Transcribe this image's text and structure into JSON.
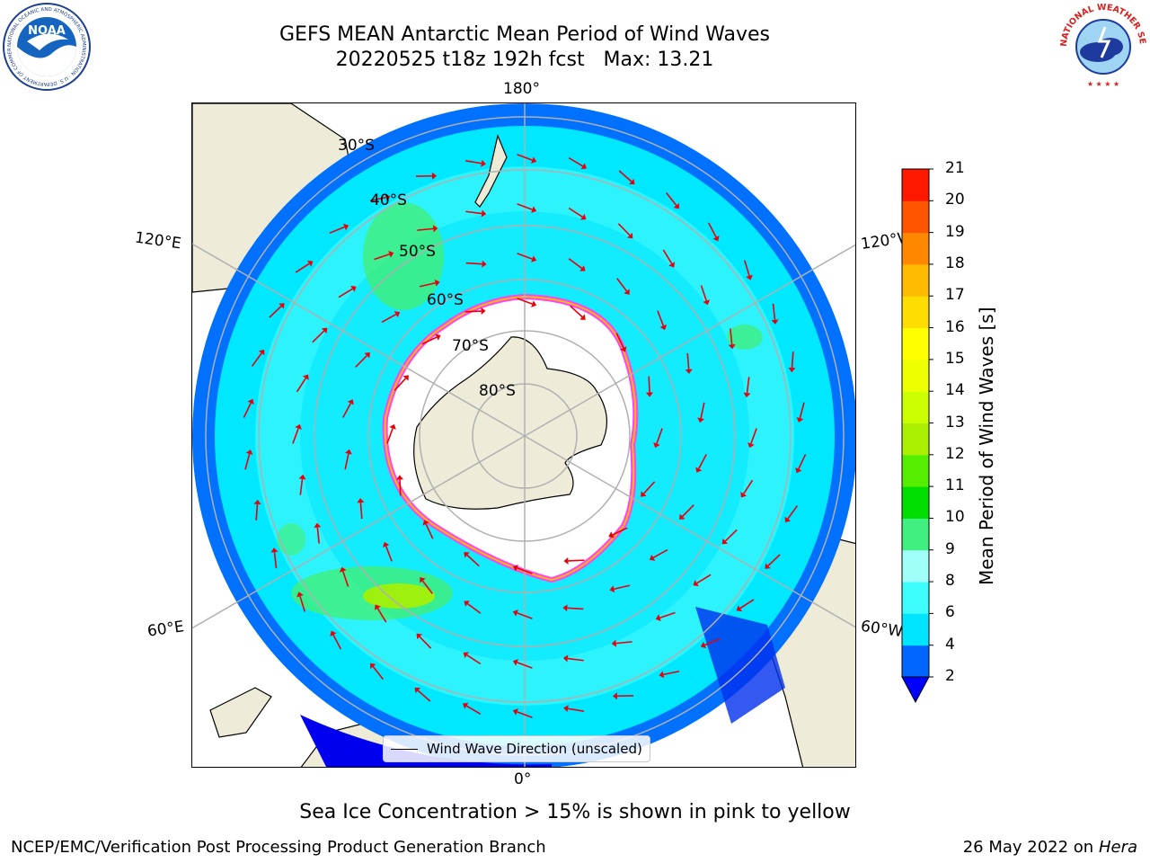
{
  "title": {
    "line1": "GEFS MEAN Antarctic Mean Period of Wind Waves",
    "line2": "20220525 t18z 192h fcst   Max: 13.21"
  },
  "map": {
    "projection": "south-polar-stereographic",
    "longitude_labels": {
      "top": "180°",
      "bottom": "0°",
      "upper_left": "120°E",
      "upper_right": "120°W",
      "lower_left": "60°E",
      "lower_right": "60°W"
    },
    "latitude_labels": [
      "30°S",
      "40°S",
      "50°S",
      "60°S",
      "70°S",
      "80°S"
    ],
    "colors": {
      "land": "#eeecd8",
      "ice_edge": "#ff40ff",
      "arrows": "#e8000b",
      "grid": "#b0b0b0"
    }
  },
  "legend": {
    "label": "Wind Wave Direction (unscaled)"
  },
  "colorbar": {
    "label": "Mean Period of Wind Waves [s]",
    "ticks": [
      "2",
      "4",
      "6",
      "8",
      "9",
      "10",
      "11",
      "12",
      "13",
      "14",
      "15",
      "16",
      "17",
      "18",
      "19",
      "20",
      "21"
    ],
    "colors": [
      "#0066ff",
      "#00e5ff",
      "#3cfcfc",
      "#a0fff8",
      "#40ef80",
      "#00dd00",
      "#55ee00",
      "#aaf000",
      "#ccff00",
      "#eeff00",
      "#ffff00",
      "#ffdd00",
      "#ffbb00",
      "#ff8800",
      "#ff5500",
      "#ff1800"
    ],
    "under_color": "#0000ff"
  },
  "footer": {
    "note": "Sea Ice Concentration > 15% is shown in pink to yellow",
    "credit": "NCEP/EMC/Verification Post Processing Product Generation Branch",
    "date": "26 May 2022 on",
    "machine": "Hera"
  },
  "logos": {
    "left": {
      "name": "noaa-logo",
      "text": "NOAA",
      "ring_text": "NATIONAL OCEANIC AND ATMOSPHERIC ADMINISTRATION · U.S. DEPARTMENT OF COMMERCE"
    },
    "right": {
      "name": "nws-logo",
      "ring_text": "NATIONAL WEATHER SERVICE"
    }
  }
}
